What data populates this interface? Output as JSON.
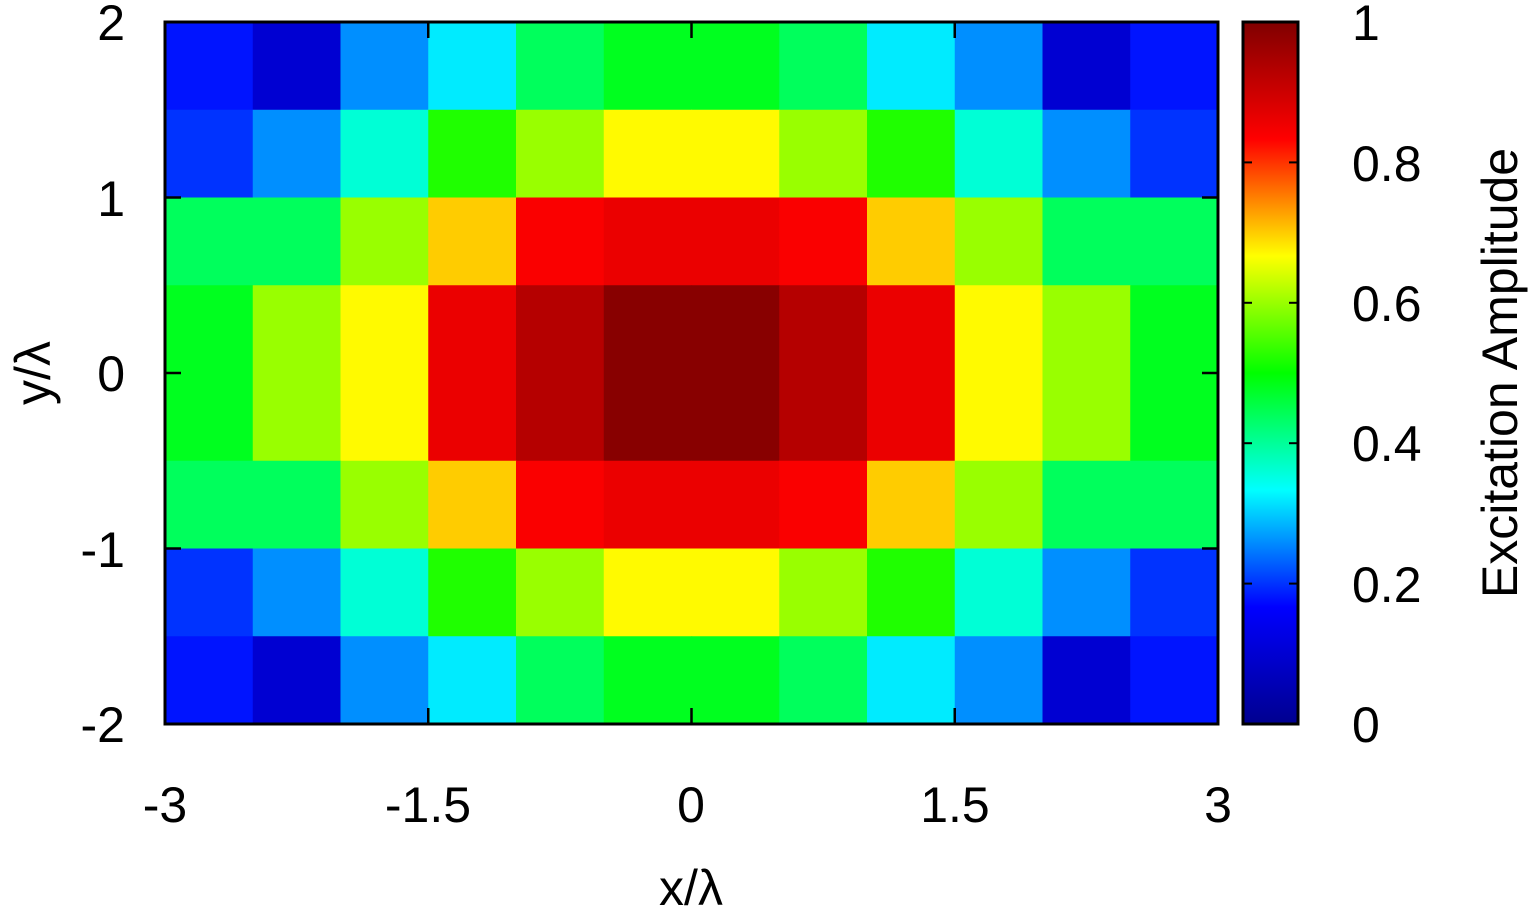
{
  "chart_data": {
    "type": "heatmap",
    "xlabel": "x/λ",
    "ylabel": "y/λ",
    "colorbar_label": "Excitation Amplitude",
    "xlim": [
      -3,
      3
    ],
    "ylim": [
      -2,
      2
    ],
    "zlim": [
      0,
      1
    ],
    "x_ticks": [
      "-3",
      "-1.5",
      "0",
      "1.5",
      "3"
    ],
    "y_ticks": [
      "2",
      "1",
      "0",
      "-1",
      "-2"
    ],
    "colorbar_ticks": [
      "1",
      "0.8",
      "0.6",
      "0.4",
      "0.2",
      "0"
    ],
    "colormap": [
      "#00008f",
      "#0000ff",
      "#00ffff",
      "#00ff00",
      "#ffff00",
      "#ff0000",
      "#800000"
    ],
    "x_centers": [
      -2.75,
      -2.25,
      -1.75,
      -1.25,
      -0.75,
      -0.25,
      0.25,
      0.75,
      1.25,
      1.75,
      2.25,
      2.75
    ],
    "y_centers": [
      1.75,
      1.25,
      0.75,
      0.25,
      -0.25,
      -0.75,
      -1.25,
      -1.75
    ],
    "z": [
      [
        0.18,
        0.1,
        0.26,
        0.32,
        0.44,
        0.48,
        0.48,
        0.44,
        0.32,
        0.26,
        0.1,
        0.18
      ],
      [
        0.2,
        0.26,
        0.36,
        0.52,
        0.6,
        0.67,
        0.67,
        0.6,
        0.52,
        0.36,
        0.26,
        0.2
      ],
      [
        0.44,
        0.44,
        0.6,
        0.7,
        0.84,
        0.86,
        0.86,
        0.84,
        0.7,
        0.6,
        0.44,
        0.44
      ],
      [
        0.48,
        0.6,
        0.67,
        0.86,
        0.93,
        0.99,
        0.99,
        0.93,
        0.86,
        0.67,
        0.6,
        0.48
      ],
      [
        0.48,
        0.6,
        0.67,
        0.86,
        0.93,
        0.99,
        0.99,
        0.93,
        0.86,
        0.67,
        0.6,
        0.48
      ],
      [
        0.44,
        0.44,
        0.6,
        0.7,
        0.84,
        0.86,
        0.86,
        0.84,
        0.7,
        0.6,
        0.44,
        0.44
      ],
      [
        0.2,
        0.26,
        0.36,
        0.52,
        0.6,
        0.67,
        0.67,
        0.6,
        0.52,
        0.36,
        0.26,
        0.2
      ],
      [
        0.18,
        0.1,
        0.26,
        0.32,
        0.44,
        0.48,
        0.48,
        0.44,
        0.32,
        0.26,
        0.1,
        0.18
      ]
    ],
    "grid": false,
    "legend": "none"
  }
}
